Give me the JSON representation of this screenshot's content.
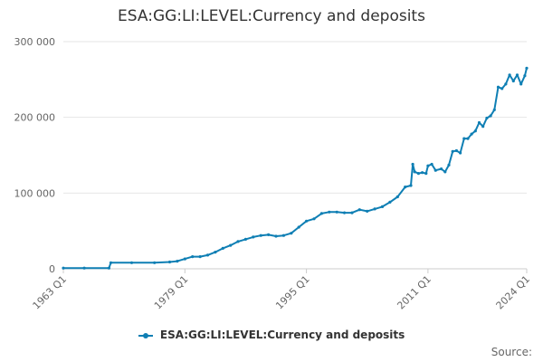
{
  "title": "ESA:GG:LI:LEVEL:Currency and deposits",
  "source_label": "Source:",
  "colors": {
    "series": "#0f7fb4",
    "grid": "#e6e6e6",
    "axis_text": "#666666"
  },
  "chart_data": {
    "type": "line",
    "title": "ESA:GG:LI:LEVEL:Currency and deposits",
    "xlabel": "",
    "ylabel": "",
    "grid": true,
    "legend_position": "bottom",
    "x_range": [
      "1963 Q1",
      "2024 Q1"
    ],
    "ylim": [
      0,
      300000
    ],
    "y_ticks": [
      0,
      100000,
      200000,
      300000
    ],
    "y_tick_labels": [
      "0",
      "100 000",
      "200 000",
      "300 000"
    ],
    "x_ticks": [
      "1963 Q1",
      "1979 Q1",
      "1995 Q1",
      "2011 Q1",
      "2024 Q1"
    ],
    "series": [
      {
        "name": "ESA:GG:LI:LEVEL:Currency and deposits",
        "x": [
          "1963 Q1",
          "1965 Q4",
          "1969 Q1",
          "1969 Q2",
          "1972 Q1",
          "1975 Q1",
          "1977 Q1",
          "1978 Q1",
          "1979 Q1",
          "1980 Q1",
          "1981 Q1",
          "1982 Q1",
          "1983 Q1",
          "1984 Q1",
          "1985 Q1",
          "1986 Q1",
          "1987 Q1",
          "1988 Q1",
          "1989 Q1",
          "1990 Q1",
          "1991 Q1",
          "1992 Q1",
          "1993 Q1",
          "1994 Q1",
          "1995 Q1",
          "1996 Q1",
          "1997 Q1",
          "1998 Q1",
          "1999 Q1",
          "2000 Q1",
          "2001 Q1",
          "2002 Q1",
          "2003 Q1",
          "2004 Q1",
          "2005 Q1",
          "2006 Q1",
          "2007 Q1",
          "2008 Q1",
          "2008 Q4",
          "2009 Q1",
          "2009 Q2",
          "2009 Q4",
          "2010 Q2",
          "2010 Q4",
          "2011 Q1",
          "2011 Q3",
          "2012 Q1",
          "2012 Q4",
          "2013 Q2",
          "2013 Q4",
          "2014 Q2",
          "2014 Q4",
          "2015 Q2",
          "2015 Q4",
          "2016 Q2",
          "2016 Q4",
          "2017 Q2",
          "2017 Q4",
          "2018 Q2",
          "2018 Q4",
          "2019 Q2",
          "2019 Q4",
          "2020 Q2",
          "2020 Q4",
          "2021 Q2",
          "2021 Q4",
          "2022 Q2",
          "2022 Q4",
          "2023 Q2",
          "2023 Q4",
          "2024 Q1"
        ],
        "values": [
          1000,
          1000,
          1000,
          8000,
          8000,
          8000,
          9000,
          10000,
          13000,
          16000,
          16000,
          18000,
          22000,
          27000,
          31000,
          36000,
          39000,
          42000,
          44000,
          45000,
          43000,
          44000,
          47000,
          55000,
          63000,
          66000,
          73000,
          75000,
          75000,
          74000,
          74000,
          78000,
          76000,
          79000,
          82000,
          88000,
          95000,
          108000,
          110000,
          138000,
          128000,
          126000,
          127000,
          126000,
          136000,
          138000,
          130000,
          132000,
          128000,
          137000,
          155000,
          156000,
          153000,
          172000,
          172000,
          178000,
          182000,
          193000,
          188000,
          199000,
          202000,
          210000,
          240000,
          238000,
          244000,
          256000,
          248000,
          256000,
          244000,
          255000,
          265000
        ]
      }
    ]
  }
}
